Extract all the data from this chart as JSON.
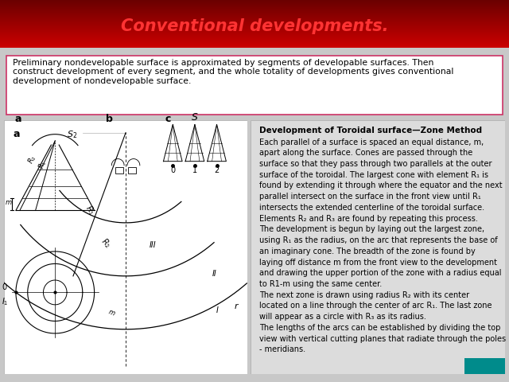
{
  "title": "Conventional developments.",
  "title_color": "#FF3333",
  "title_bg_top": "#6B0000",
  "title_bg_bottom": "#CC0000",
  "title_fontsize": 15,
  "top_box_text": "Preliminary nondevelopable surface is approximated by segments of developable surfaces. Then\nconstruct development of every segment, and the whole totality of developments gives conventional\ndevelopment of nondevelopable surface.",
  "top_box_bg": "#FFFFFF",
  "top_box_border": "#CC3366",
  "right_box_bg": "#DCDCDC",
  "right_title": "Development of Toroidal surface—Zone Method",
  "right_body_lines": [
    "Each parallel of a surface is spaced an equal distance, m,",
    "apart along the surface. Cones are passed through the",
    "surface so that they pass through two parallels at the outer",
    "surface of the toroidal. The largest cone with element R₁ is",
    "found by extending it through where the equator and the next",
    "parallel intersect on the surface in the front view until R₁",
    "intersects the extended centerline of the toroidal surface.",
    "Elements R₂ and R₃ are found by repeating this process.",
    "The development is begun by laying out the largest zone,",
    "using R₁ as the radius, on the arc that represents the base of",
    "an imaginary cone. The breadth of the zone is found by",
    "laying off distance m from the front view to the development",
    "and drawing the upper portion of the zone with a radius equal",
    "to R1-m using the same center.",
    "The next zone is drawn using radius R₂ with its center",
    "located on a line through the center of arc R₁. The last zone",
    "will appear as a circle with R₃ as its radius.",
    "The lengths of the arcs can be established by dividing the top",
    "view with vertical cutting planes that radiate through the poles",
    "- meridians."
  ],
  "left_drawing_bg": "#FFFFFF",
  "fig_bg_color": "#C8C8C8",
  "corner_teal": "#008B8B"
}
